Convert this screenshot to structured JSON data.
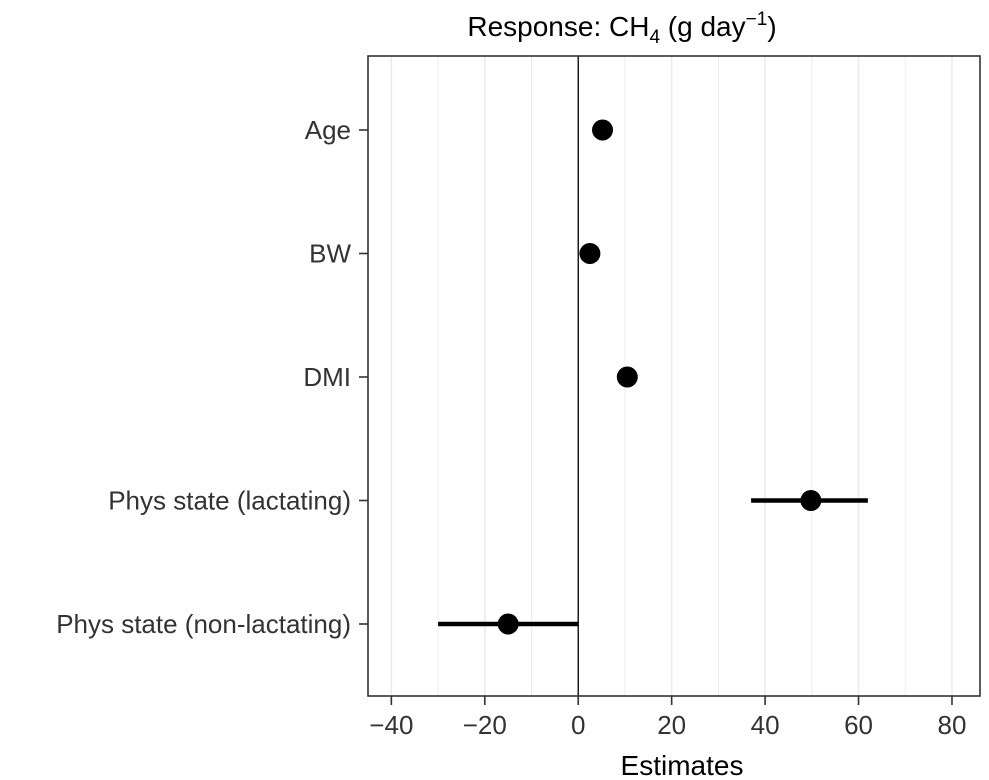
{
  "chart_data": {
    "type": "scatter",
    "subtype": "coefficient-plot",
    "title": {
      "prefix": "Response: CH",
      "subscript": "4",
      "middle": " (g day",
      "superscript": "−1",
      "suffix": ")"
    },
    "xlabel": "Estimates",
    "ylabel": "",
    "xlim": [
      -45,
      86
    ],
    "xticks": [
      -40,
      -20,
      0,
      20,
      40,
      60,
      80
    ],
    "xtick_labels": [
      "−40",
      "−20",
      "0",
      "20",
      "40",
      "60",
      "80"
    ],
    "reference_line": 0,
    "grid": true,
    "categories": [
      "Age",
      "BW",
      "DMI",
      "Phys state (lactating)",
      "Phys state (non-lactating)"
    ],
    "estimates": [
      5.2,
      2.5,
      10.5,
      49.8,
      -15
    ],
    "lower": [
      5.2,
      2.5,
      10.5,
      37,
      -30
    ],
    "upper": [
      5.2,
      2.5,
      10.5,
      62,
      0
    ],
    "colors": {
      "point": "#000000",
      "errorbar": "#000000",
      "grid": "#ebebeb",
      "frame": "#333333",
      "zero_line": "#000000"
    }
  }
}
